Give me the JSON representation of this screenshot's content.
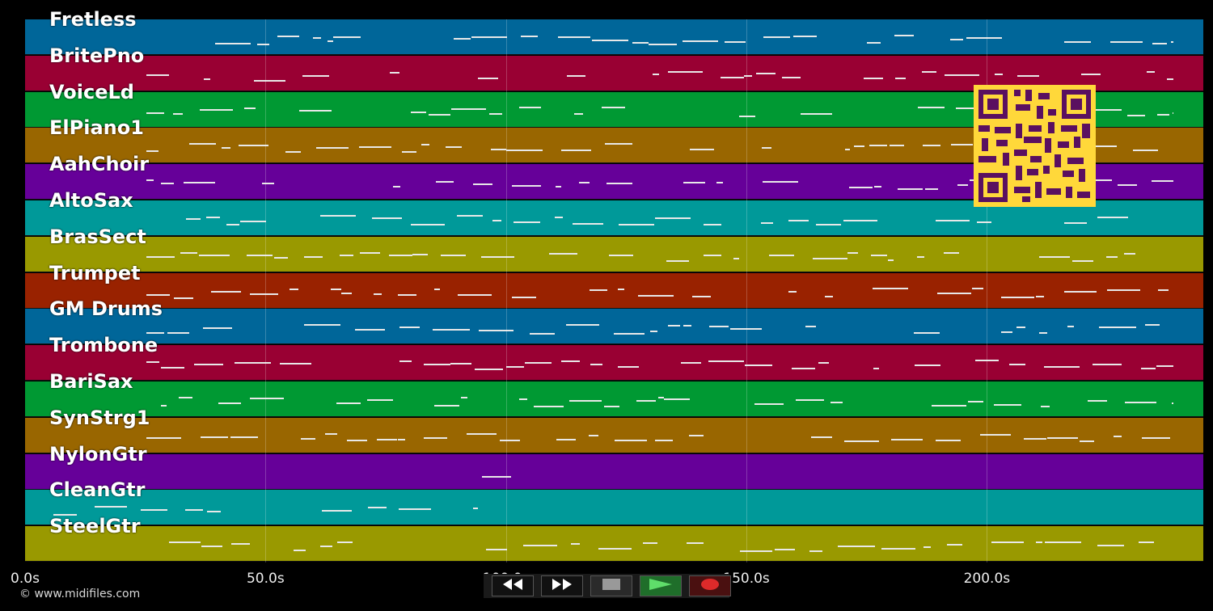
{
  "tracks": [
    {
      "name": "Fretless",
      "color": "#006699"
    },
    {
      "name": "BritePno",
      "color": "#990033"
    },
    {
      "name": "VoiceLd",
      "color": "#009933"
    },
    {
      "name": "ElPiano1",
      "color": "#996600"
    },
    {
      "name": "AahChoir",
      "color": "#660099"
    },
    {
      "name": "AltoSax",
      "color": "#009999"
    },
    {
      "name": "BrasSect",
      "color": "#999900"
    },
    {
      "name": "Trumpet",
      "color": "#992200"
    },
    {
      "name": "GM Drums",
      "color": "#006699"
    },
    {
      "name": "Trombone",
      "color": "#990033"
    },
    {
      "name": "BariSax",
      "color": "#009933"
    },
    {
      "name": "SynStrg1",
      "color": "#996600"
    },
    {
      "name": "NylonGtr",
      "color": "#660099"
    },
    {
      "name": "CleanGtr",
      "color": "#009999"
    },
    {
      "name": "SteelGtr",
      "color": "#999900"
    }
  ],
  "timeline": {
    "ticks": [
      "0.0s",
      "50.0s",
      "100.0s",
      "150.0s",
      "200.0s"
    ],
    "tick_seconds": [
      0,
      50,
      100,
      150,
      200
    ],
    "max_seconds": 245
  },
  "transport": {
    "rewind_icon": "rewind-icon",
    "fast_forward_icon": "fast-forward-icon",
    "stop_icon": "stop-icon",
    "play_icon": "play-icon",
    "record_icon": "record-icon"
  },
  "footer": {
    "copyright": "© www.midifiles.com"
  },
  "qr_icon": "qr-code-icon"
}
